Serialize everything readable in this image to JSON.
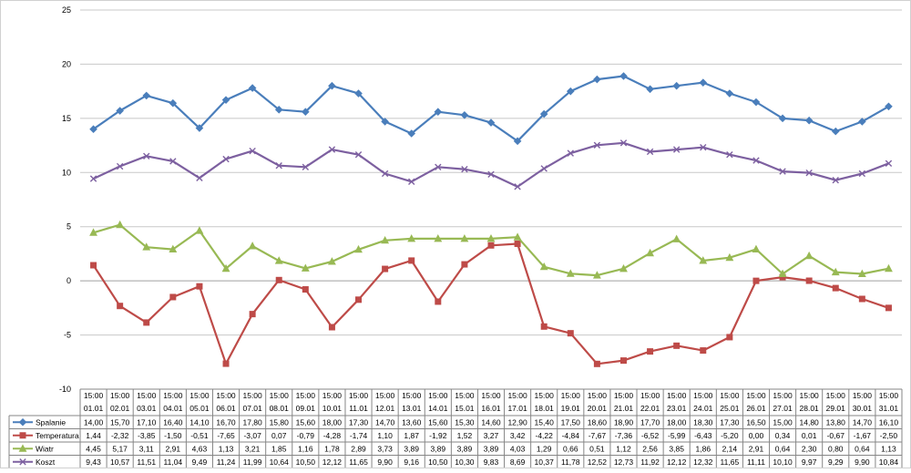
{
  "colors": {
    "Spalanie": "#4a7ebb",
    "Temperatura": "#be4b48",
    "Wiatr": "#98b954",
    "Koszt": "#7d60a0",
    "grid": "#c8c8c8",
    "axis": "#868686"
  },
  "chart_data": {
    "type": "line",
    "title": "",
    "xlabel": "",
    "ylabel": "",
    "ylim": [
      -10,
      25
    ],
    "yticks": [
      "25",
      "20",
      "15",
      "10",
      "5",
      "0",
      "-5",
      "-10"
    ],
    "grid": true,
    "legend": "data-table-left",
    "categories_time": [
      "15:00",
      "15:00",
      "15:00",
      "15:00",
      "15:00",
      "15:00",
      "15:00",
      "15:00",
      "15:00",
      "15:00",
      "15:00",
      "15:00",
      "15:00",
      "15:00",
      "15:00",
      "15:00",
      "15:00",
      "15:00",
      "15:00",
      "15:00",
      "15:00",
      "15:00",
      "15:00",
      "15:00",
      "15:00",
      "15:00",
      "15:00",
      "15:00",
      "15:00",
      "15:00",
      "15:00"
    ],
    "categories_date": [
      "01.01",
      "02.01",
      "03.01",
      "04.01",
      "05.01",
      "06.01",
      "07.01",
      "08.01",
      "09.01",
      "10.01",
      "11.01",
      "12.01",
      "13.01",
      "14.01",
      "15.01",
      "16.01",
      "17.01",
      "18.01",
      "19.01",
      "20.01",
      "21.01",
      "22.01",
      "23.01",
      "24.01",
      "25.01",
      "26.01",
      "27.01",
      "28.01",
      "29.01",
      "30.01",
      "31.01"
    ],
    "series": [
      {
        "name": "Spalanie",
        "marker": "diamond",
        "values": [
          14.0,
          15.7,
          17.1,
          16.4,
          14.1,
          16.7,
          17.8,
          15.8,
          15.6,
          18.0,
          17.3,
          14.7,
          13.6,
          15.6,
          15.3,
          14.6,
          12.9,
          15.4,
          17.5,
          18.6,
          18.9,
          17.7,
          18.0,
          18.3,
          17.3,
          16.5,
          15.0,
          14.8,
          13.8,
          14.7,
          16.1
        ],
        "labels": [
          "14,00",
          "15,70",
          "17,10",
          "16,40",
          "14,10",
          "16,70",
          "17,80",
          "15,80",
          "15,60",
          "18,00",
          "17,30",
          "14,70",
          "13,60",
          "15,60",
          "15,30",
          "14,60",
          "12,90",
          "15,40",
          "17,50",
          "18,60",
          "18,90",
          "17,70",
          "18,00",
          "18,30",
          "17,30",
          "16,50",
          "15,00",
          "14,80",
          "13,80",
          "14,70",
          "16,10"
        ]
      },
      {
        "name": "Temperatura",
        "marker": "square",
        "values": [
          1.44,
          -2.32,
          -3.85,
          -1.5,
          -0.51,
          -7.65,
          -3.07,
          0.07,
          -0.79,
          -4.28,
          -1.74,
          1.1,
          1.87,
          -1.92,
          1.52,
          3.27,
          3.42,
          -4.22,
          -4.84,
          -7.67,
          -7.36,
          -6.52,
          -5.99,
          -6.43,
          -5.2,
          0.0,
          0.34,
          0.01,
          -0.67,
          -1.67,
          -2.5
        ],
        "labels": [
          "1,44",
          "-2,32",
          "-3,85",
          "-1,50",
          "-0,51",
          "-7,65",
          "-3,07",
          "0,07",
          "-0,79",
          "-4,28",
          "-1,74",
          "1,10",
          "1,87",
          "-1,92",
          "1,52",
          "3,27",
          "3,42",
          "-4,22",
          "-4,84",
          "-7,67",
          "-7,36",
          "-6,52",
          "-5,99",
          "-6,43",
          "-5,20",
          "0,00",
          "0,34",
          "0,01",
          "-0,67",
          "-1,67",
          "-2,50"
        ]
      },
      {
        "name": "Wiatr",
        "marker": "triangle",
        "values": [
          4.45,
          5.17,
          3.11,
          2.91,
          4.63,
          1.13,
          3.21,
          1.85,
          1.16,
          1.78,
          2.89,
          3.73,
          3.89,
          3.89,
          3.89,
          3.89,
          4.03,
          1.29,
          0.66,
          0.51,
          1.12,
          2.56,
          3.85,
          1.86,
          2.14,
          2.91,
          0.64,
          2.3,
          0.8,
          0.64,
          1.13
        ],
        "labels": [
          "4,45",
          "5,17",
          "3,11",
          "2,91",
          "4,63",
          "1,13",
          "3,21",
          "1,85",
          "1,16",
          "1,78",
          "2,89",
          "3,73",
          "3,89",
          "3,89",
          "3,89",
          "3,89",
          "4,03",
          "1,29",
          "0,66",
          "0,51",
          "1,12",
          "2,56",
          "3,85",
          "1,86",
          "2,14",
          "2,91",
          "0,64",
          "2,30",
          "0,80",
          "0,64",
          "1,13"
        ]
      },
      {
        "name": "Koszt",
        "marker": "x",
        "values": [
          9.43,
          10.57,
          11.51,
          11.04,
          9.49,
          11.24,
          11.99,
          10.64,
          10.5,
          12.12,
          11.65,
          9.9,
          9.16,
          10.5,
          10.3,
          9.83,
          8.69,
          10.37,
          11.78,
          12.52,
          12.73,
          11.92,
          12.12,
          12.32,
          11.65,
          11.11,
          10.1,
          9.97,
          9.29,
          9.9,
          10.84
        ],
        "labels": [
          "9,43",
          "10,57",
          "11,51",
          "11,04",
          "9,49",
          "11,24",
          "11,99",
          "10,64",
          "10,50",
          "12,12",
          "11,65",
          "9,90",
          "9,16",
          "10,50",
          "10,30",
          "9,83",
          "8,69",
          "10,37",
          "11,78",
          "12,52",
          "12,73",
          "11,92",
          "12,12",
          "12,32",
          "11,65",
          "11,11",
          "10,10",
          "9,97",
          "9,29",
          "9,90",
          "10,84"
        ]
      }
    ]
  }
}
